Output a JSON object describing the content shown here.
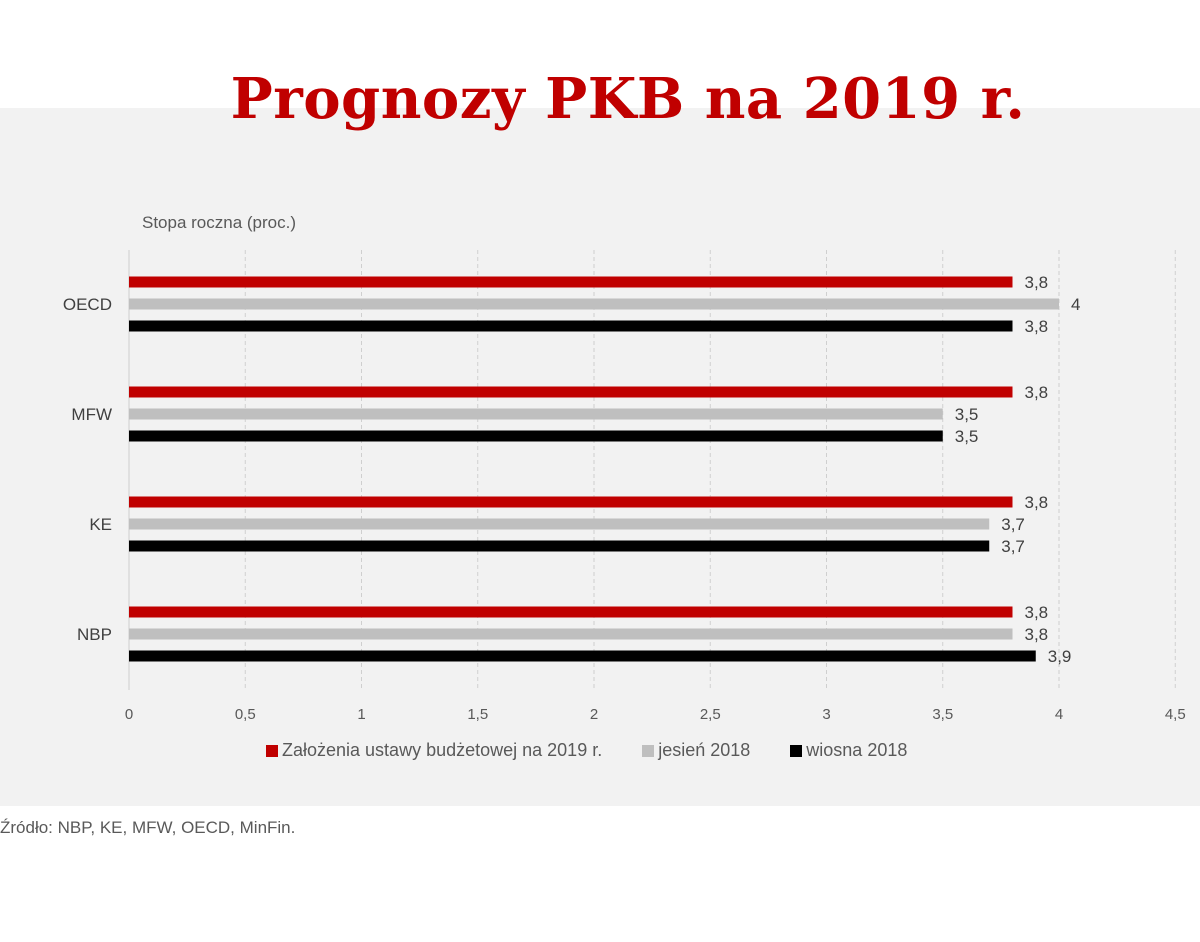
{
  "chart_data": {
    "type": "bar",
    "orientation": "horizontal",
    "title": "Prognozy PKB na 2019 r.",
    "ylabel": "Stopa roczna (proc.)",
    "categories": [
      "OECD",
      "MFW",
      "KE",
      "NBP"
    ],
    "series": [
      {
        "name": "Założenia ustawy budżetowej na 2019 r.",
        "color": "#c00000",
        "values": [
          3.8,
          3.8,
          3.8,
          3.8
        ],
        "labels": [
          "3,8",
          "3,8",
          "3,8",
          "3,8"
        ]
      },
      {
        "name": "jesień 2018",
        "color": "#bfbfbf",
        "values": [
          4,
          3.5,
          3.7,
          3.8
        ],
        "labels": [
          "4",
          "3,5",
          "3,7",
          "3,8"
        ]
      },
      {
        "name": "wiosna 2018",
        "color": "#000000",
        "values": [
          3.8,
          3.5,
          3.7,
          3.9
        ],
        "labels": [
          "3,8",
          "3,5",
          "3,7",
          "3,9"
        ]
      }
    ],
    "xticks": [
      0,
      0.5,
      1,
      1.5,
      2,
      2.5,
      3,
      3.5,
      4,
      4.5
    ],
    "xtick_labels": [
      "0",
      "0,5",
      "1",
      "1,5",
      "2",
      "2,5",
      "3",
      "3,5",
      "4",
      "4,5"
    ],
    "xlim": [
      0,
      4.5
    ],
    "grid": "vertical dashed",
    "legend_position": "bottom"
  },
  "source": "Źródło: NBP, KE, MFW, OECD, MinFin."
}
